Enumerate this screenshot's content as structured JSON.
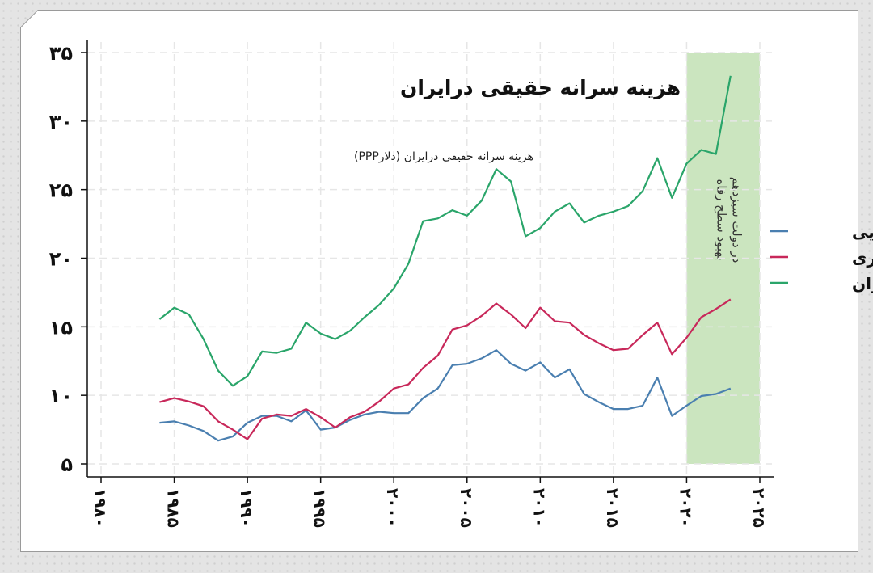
{
  "chart_data": {
    "type": "line",
    "title": "هزینه سرانه حقیقی درایران",
    "subtitle": "هزینه سرانه حقیقی درایران (دلارPPP)",
    "xlabel": "",
    "ylabel": "",
    "xlim": [
      1980,
      2025
    ],
    "ylim": [
      5,
      35
    ],
    "x_ticks": [
      1980,
      1985,
      1990,
      1995,
      2000,
      2005,
      2010,
      2015,
      2020,
      2025
    ],
    "x_tick_labels": [
      "۱۹۸۰",
      "۱۹۸۵",
      "۱۹۹۰",
      "۱۹۹۵",
      "۲۰۰۰",
      "۲۰۰۵",
      "۲۰۱۰",
      "۲۰۱۵",
      "۲۰۲۰",
      "۲۰۲۵"
    ],
    "y_ticks": [
      5,
      10,
      15,
      20,
      25,
      30,
      35
    ],
    "y_tick_labels": [
      "۵",
      "۱۰",
      "۱۵",
      "۲۰",
      "۲۵",
      "۳۰",
      "۳۵"
    ],
    "grid": true,
    "legend_position": "right",
    "x": [
      1984,
      1985,
      1986,
      1987,
      1988,
      1989,
      1990,
      1991,
      1992,
      1993,
      1994,
      1995,
      1996,
      1997,
      1998,
      1999,
      2000,
      2001,
      2002,
      2003,
      2004,
      2005,
      2006,
      2007,
      2008,
      2009,
      2010,
      2011,
      2012,
      2013,
      2014,
      2015,
      2016,
      2017,
      2018,
      2019,
      2020,
      2021,
      2022,
      2023
    ],
    "series": [
      {
        "name": "روستایی",
        "color": "#4a7fb0",
        "values": [
          8.0,
          8.1,
          7.8,
          7.4,
          6.7,
          7.0,
          8.0,
          8.5,
          8.5,
          8.1,
          8.9,
          7.5,
          7.65,
          8.2,
          8.6,
          8.8,
          8.7,
          8.7,
          9.8,
          10.5,
          12.2,
          12.3,
          12.7,
          13.3,
          12.3,
          11.8,
          12.4,
          11.3,
          11.9,
          10.1,
          9.5,
          9.0,
          9.0,
          9.25,
          11.3,
          8.5,
          9.25,
          9.95,
          10.1,
          10.5
        ]
      },
      {
        "name": "شهـری",
        "color": "#c8285a",
        "values": [
          9.5,
          9.8,
          9.55,
          9.2,
          8.1,
          7.5,
          6.8,
          8.3,
          8.6,
          8.5,
          9.0,
          8.4,
          7.65,
          8.4,
          8.8,
          9.55,
          10.5,
          10.8,
          12.0,
          12.9,
          14.8,
          15.1,
          15.8,
          16.7,
          15.9,
          14.9,
          16.4,
          15.4,
          15.3,
          14.4,
          13.8,
          13.3,
          13.4,
          14.4,
          15.3,
          13.0,
          14.2,
          15.7,
          16.3,
          17.0
        ]
      },
      {
        "name": "تهـران",
        "color": "#2aa56a",
        "values": [
          15.55,
          16.4,
          15.9,
          14.1,
          11.8,
          10.7,
          11.4,
          13.2,
          13.1,
          13.4,
          15.3,
          14.5,
          14.1,
          14.7,
          15.7,
          16.6,
          17.8,
          19.6,
          22.7,
          22.9,
          23.5,
          23.1,
          24.2,
          26.5,
          25.6,
          21.6,
          22.2,
          23.4,
          24.0,
          22.6,
          23.1,
          23.4,
          23.8,
          24.9,
          27.3,
          24.4,
          26.9,
          27.9,
          27.6,
          33.3
        ]
      }
    ],
    "annotations": [
      {
        "type": "shaded_region",
        "x_range": [
          2020,
          2025
        ],
        "color": "#cbe5bf",
        "lines": [
          "بهبود سطح رفاه",
          "در دولت سیزدهم"
        ]
      }
    ]
  }
}
